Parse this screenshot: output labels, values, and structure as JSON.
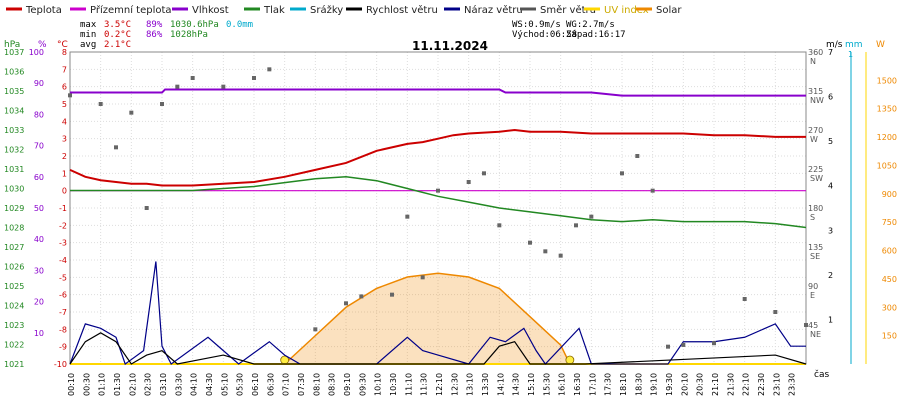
{
  "chart_data": {
    "type": "line",
    "title": "11.11.2024",
    "xlabel": "čas",
    "legend": [
      {
        "label": "Teplota",
        "color": "#cc0000"
      },
      {
        "label": "Přízemní teplota",
        "color": "#cc00cc"
      },
      {
        "label": "Vlhkost",
        "color": "#8800cc"
      },
      {
        "label": "Tlak",
        "color": "#228822"
      },
      {
        "label": "Srážky",
        "color": "#00aacc"
      },
      {
        "label": "Rychlost větru",
        "color": "#000000"
      },
      {
        "label": "Náraz větru",
        "color": "#000088"
      },
      {
        "label": "Směr větru",
        "color": "#555555"
      },
      {
        "label": "UV index",
        "color": "#ffd700"
      },
      {
        "label": "Solar",
        "color": "#ee8800"
      }
    ],
    "stats": {
      "max": {
        "label": "max",
        "temp": "3.5°C",
        "hum": "89%",
        "pres": "1030.6hPa",
        "rain": "0.0mm"
      },
      "min": {
        "label": "min",
        "temp": "0.2°C",
        "hum": "86%",
        "pres": "1028hPa"
      },
      "avg": {
        "label": "avg",
        "temp": "2.1°C"
      }
    },
    "wind_info": {
      "ws": "WS:0.9m/s",
      "wg": "WG:2.7m/s",
      "sunrise": "Východ:06:58",
      "sunset": "Západ:16:17"
    },
    "axes": {
      "hpa": {
        "unit": "hPa",
        "ticks": [
          "1037",
          "1036",
          "1035",
          "1034",
          "1033",
          "1032",
          "1031",
          "1030",
          "1029",
          "1028",
          "1027",
          "1026",
          "1025",
          "1024",
          "1023",
          "1022",
          "1021"
        ]
      },
      "pct": {
        "unit": "%",
        "ticks": [
          "100",
          "90",
          "80",
          "70",
          "60",
          "50",
          "40",
          "30",
          "20",
          "10"
        ]
      },
      "degc": {
        "unit": "°C",
        "ticks": [
          "8",
          "7",
          "6",
          "5",
          "4",
          "3",
          "2",
          "1",
          "0",
          "-1",
          "-2",
          "-3",
          "-4",
          "-5",
          "-6",
          "-7",
          "-8",
          "-9",
          "-10"
        ]
      },
      "dir": {
        "ticks": [
          [
            "360",
            "N"
          ],
          [
            "315",
            "NW"
          ],
          [
            "270",
            "W"
          ],
          [
            "225",
            "SW"
          ],
          [
            "180",
            "S"
          ],
          [
            "135",
            "SE"
          ],
          [
            "90",
            "E"
          ],
          [
            "45",
            "NE"
          ]
        ]
      },
      "ms": {
        "unit": "m/s",
        "ticks": [
          "7",
          "6",
          "5",
          "4",
          "3",
          "2",
          "1"
        ]
      },
      "mm": {
        "unit": "mm",
        "ticks": [
          "1"
        ]
      },
      "w": {
        "unit": "W",
        "ticks": [
          "1500",
          "1350",
          "1200",
          "1050",
          "900",
          "750",
          "600",
          "450",
          "300",
          "150"
        ]
      },
      "time": {
        "ticks": [
          "00:10",
          "00:30",
          "01:10",
          "01:30",
          "02:10",
          "02:30",
          "03:10",
          "03:30",
          "04:10",
          "04:30",
          "05:10",
          "05:30",
          "06:10",
          "06:30",
          "07:10",
          "07:30",
          "08:10",
          "08:30",
          "09:10",
          "09:30",
          "10:10",
          "10:30",
          "11:10",
          "11:30",
          "12:10",
          "12:30",
          "13:10",
          "13:30",
          "14:10",
          "14:30",
          "15:10",
          "15:30",
          "16:10",
          "16:30",
          "17:10",
          "17:30",
          "18:10",
          "18:30",
          "19:10",
          "19:30",
          "20:10",
          "20:30",
          "21:10",
          "21:30",
          "22:10",
          "22:30",
          "23:10",
          "23:30"
        ]
      }
    },
    "ylim_temp": [
      -10,
      8
    ],
    "ylim_hum": [
      0,
      100
    ],
    "ylim_pres": [
      1021,
      1037
    ],
    "ylim_wind": [
      0,
      7
    ],
    "ylim_dir": [
      0,
      360
    ],
    "ylim_solar": [
      0,
      1650
    ],
    "xlim_hours": [
      0,
      24
    ],
    "series_temp": [
      [
        0,
        1.2
      ],
      [
        0.5,
        0.8
      ],
      [
        1,
        0.6
      ],
      [
        1.5,
        0.5
      ],
      [
        2,
        0.4
      ],
      [
        2.5,
        0.4
      ],
      [
        3,
        0.3
      ],
      [
        4,
        0.3
      ],
      [
        5,
        0.4
      ],
      [
        6,
        0.5
      ],
      [
        7,
        0.8
      ],
      [
        8,
        1.2
      ],
      [
        9,
        1.6
      ],
      [
        10,
        2.3
      ],
      [
        11,
        2.7
      ],
      [
        11.5,
        2.8
      ],
      [
        12,
        3.0
      ],
      [
        12.5,
        3.2
      ],
      [
        13,
        3.3
      ],
      [
        14,
        3.4
      ],
      [
        14.5,
        3.5
      ],
      [
        15,
        3.4
      ],
      [
        16,
        3.4
      ],
      [
        17,
        3.3
      ],
      [
        18,
        3.3
      ],
      [
        19,
        3.3
      ],
      [
        20,
        3.3
      ],
      [
        21,
        3.2
      ],
      [
        22,
        3.2
      ],
      [
        23,
        3.1
      ],
      [
        24,
        3.1
      ]
    ],
    "series_ground": [
      [
        0,
        0.0
      ],
      [
        24,
        0.0
      ]
    ],
    "series_hum": [
      [
        0,
        87
      ],
      [
        3,
        87
      ],
      [
        3.1,
        88
      ],
      [
        12,
        88
      ],
      [
        14,
        88
      ],
      [
        14.2,
        87
      ],
      [
        17,
        87
      ],
      [
        18,
        86
      ],
      [
        19,
        86
      ],
      [
        22,
        86
      ],
      [
        24,
        86
      ]
    ],
    "series_pres": [
      [
        0,
        1029.9
      ],
      [
        2,
        1029.9
      ],
      [
        4,
        1029.9
      ],
      [
        6,
        1030.1
      ],
      [
        7,
        1030.3
      ],
      [
        8,
        1030.5
      ],
      [
        9,
        1030.6
      ],
      [
        10,
        1030.4
      ],
      [
        11,
        1030.0
      ],
      [
        12,
        1029.6
      ],
      [
        13,
        1029.3
      ],
      [
        14,
        1029.0
      ],
      [
        15,
        1028.8
      ],
      [
        16,
        1028.6
      ],
      [
        17,
        1028.4
      ],
      [
        18,
        1028.3
      ],
      [
        19,
        1028.4
      ],
      [
        20,
        1028.3
      ],
      [
        21,
        1028.3
      ],
      [
        22,
        1028.3
      ],
      [
        23,
        1028.2
      ],
      [
        24,
        1028.0
      ]
    ],
    "series_gust": [
      [
        0,
        0
      ],
      [
        0.5,
        0.9
      ],
      [
        1,
        0.8
      ],
      [
        1.5,
        0.6
      ],
      [
        1.8,
        0
      ],
      [
        2.4,
        0.3
      ],
      [
        2.8,
        2.3
      ],
      [
        3,
        0.4
      ],
      [
        3.3,
        0
      ],
      [
        4.5,
        0.6
      ],
      [
        5,
        0.3
      ],
      [
        5.5,
        0
      ],
      [
        6.5,
        0.5
      ],
      [
        7,
        0.2
      ],
      [
        7.5,
        0
      ],
      [
        10,
        0
      ],
      [
        11,
        0.6
      ],
      [
        11.5,
        0.3
      ],
      [
        12,
        0.2
      ],
      [
        13,
        0
      ],
      [
        13.7,
        0.6
      ],
      [
        14.2,
        0.5
      ],
      [
        14.8,
        0.8
      ],
      [
        15.2,
        0.3
      ],
      [
        15.5,
        0
      ],
      [
        16.6,
        0.8
      ],
      [
        17,
        0
      ],
      [
        19.5,
        0
      ],
      [
        20,
        0.5
      ],
      [
        21,
        0.5
      ],
      [
        22,
        0.6
      ],
      [
        23,
        0.9
      ],
      [
        23.5,
        0.4
      ],
      [
        24,
        0.4
      ]
    ],
    "series_speed": [
      [
        0,
        0
      ],
      [
        0.5,
        0.5
      ],
      [
        1,
        0.7
      ],
      [
        1.5,
        0.5
      ],
      [
        2,
        0
      ],
      [
        2.5,
        0.2
      ],
      [
        3,
        0.3
      ],
      [
        3.5,
        0
      ],
      [
        5,
        0.2
      ],
      [
        6,
        0
      ],
      [
        13.5,
        0
      ],
      [
        14,
        0.4
      ],
      [
        14.5,
        0.5
      ],
      [
        15,
        0
      ],
      [
        16.8,
        0
      ],
      [
        23,
        0.2
      ],
      [
        24,
        0
      ]
    ],
    "series_dir": [
      [
        0,
        310
      ],
      [
        1,
        300
      ],
      [
        1.5,
        250
      ],
      [
        2,
        290
      ],
      [
        2.5,
        180
      ],
      [
        3,
        300
      ],
      [
        3.5,
        320
      ],
      [
        4,
        330
      ],
      [
        5,
        320
      ],
      [
        6,
        330
      ],
      [
        6.5,
        340
      ],
      [
        8,
        40
      ],
      [
        9,
        70
      ],
      [
        9.5,
        78
      ],
      [
        10.5,
        80
      ],
      [
        11,
        170
      ],
      [
        11.5,
        100
      ],
      [
        12,
        200
      ],
      [
        13,
        210
      ],
      [
        13.5,
        220
      ],
      [
        14,
        160
      ],
      [
        15,
        140
      ],
      [
        15.5,
        130
      ],
      [
        16,
        125
      ],
      [
        16.5,
        160
      ],
      [
        17,
        170
      ],
      [
        18,
        220
      ],
      [
        18.5,
        240
      ],
      [
        19,
        200
      ],
      [
        19.5,
        20
      ],
      [
        20,
        22
      ],
      [
        21,
        24
      ],
      [
        22,
        75
      ],
      [
        23,
        60
      ],
      [
        24,
        45
      ]
    ],
    "series_solar": [
      [
        7,
        0
      ],
      [
        8,
        150
      ],
      [
        9,
        300
      ],
      [
        10,
        400
      ],
      [
        11,
        460
      ],
      [
        12,
        480
      ],
      [
        13,
        460
      ],
      [
        14,
        400
      ],
      [
        15,
        250
      ],
      [
        16,
        100
      ],
      [
        16.3,
        0
      ]
    ],
    "series_uv": [
      [
        0,
        0
      ],
      [
        24,
        0
      ]
    ],
    "series_sun": [
      [
        7,
        0
      ],
      [
        16.3,
        0
      ]
    ]
  }
}
